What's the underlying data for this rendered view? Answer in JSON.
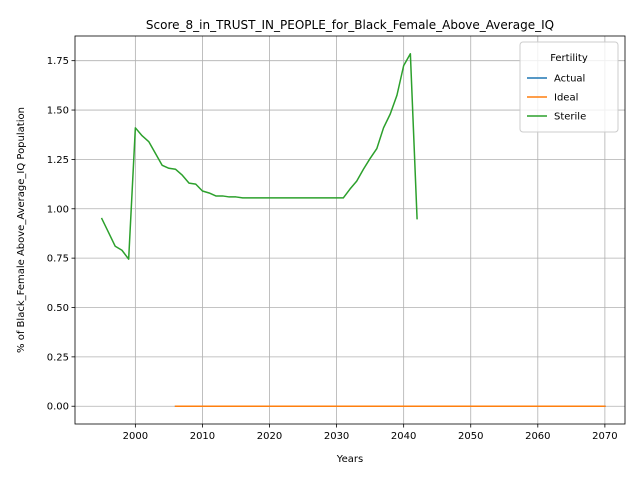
{
  "chart_data": {
    "type": "line",
    "title": "Score_8_in_TRUST_IN_PEOPLE_for_Black_Female_Above_Average_IQ",
    "xlabel": "Years",
    "ylabel": "% of Black_Female Above_Average_IQ Population",
    "xlim": [
      1991,
      2073
    ],
    "ylim": [
      -0.09,
      1.875
    ],
    "xticks": [
      2000,
      2010,
      2020,
      2030,
      2040,
      2050,
      2060,
      2070
    ],
    "yticks": [
      0.0,
      0.25,
      0.5,
      0.75,
      1.0,
      1.25,
      1.5,
      1.75
    ],
    "xtick_labels": [
      "2000",
      "2010",
      "2020",
      "2030",
      "2040",
      "2050",
      "2060",
      "2070"
    ],
    "ytick_labels": [
      "0.00",
      "0.25",
      "0.50",
      "0.75",
      "1.00",
      "1.25",
      "1.50",
      "1.75"
    ],
    "grid": true,
    "legend": {
      "title": "Fertility",
      "placement": "top-right"
    },
    "series": [
      {
        "name": "Actual",
        "color": "#1f77b4",
        "x": [
          2006,
          2070
        ],
        "y": [
          0.0,
          0.0
        ]
      },
      {
        "name": "Ideal",
        "color": "#ff7f0e",
        "x": [
          2006,
          2070
        ],
        "y": [
          0.0,
          0.0
        ]
      },
      {
        "name": "Sterile",
        "color": "#2ca02c",
        "x": [
          1995,
          1996,
          1997,
          1998,
          1999,
          2000,
          2001,
          2002,
          2003,
          2004,
          2005,
          2006,
          2007,
          2008,
          2009,
          2010,
          2011,
          2012,
          2013,
          2014,
          2015,
          2016,
          2017,
          2018,
          2019,
          2020,
          2021,
          2022,
          2023,
          2024,
          2025,
          2026,
          2027,
          2028,
          2029,
          2030,
          2031,
          2032,
          2033,
          2034,
          2035,
          2036,
          2037,
          2038,
          2039,
          2040,
          2041,
          2042
        ],
        "y": [
          0.95,
          0.88,
          0.81,
          0.79,
          0.745,
          1.41,
          1.37,
          1.34,
          1.28,
          1.22,
          1.205,
          1.2,
          1.17,
          1.13,
          1.125,
          1.09,
          1.08,
          1.065,
          1.065,
          1.06,
          1.06,
          1.055,
          1.055,
          1.055,
          1.055,
          1.055,
          1.055,
          1.055,
          1.055,
          1.055,
          1.055,
          1.055,
          1.055,
          1.055,
          1.055,
          1.055,
          1.055,
          1.1,
          1.14,
          1.2,
          1.255,
          1.305,
          1.41,
          1.48,
          1.575,
          1.725,
          1.785,
          0.95
        ]
      }
    ]
  }
}
